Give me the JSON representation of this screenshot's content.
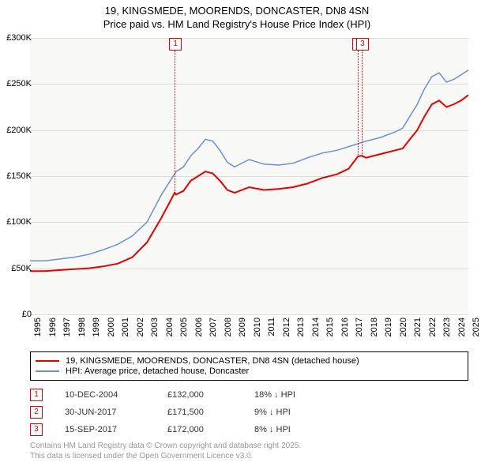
{
  "title_line1": "19, KINGSMEDE, MOORENDS, DONCASTER, DN8 4SN",
  "title_line2": "Price paid vs. HM Land Registry's House Price Index (HPI)",
  "chart": {
    "type": "line",
    "background_color": "#f8f8f6",
    "grid_color": "#dcdcdc",
    "ylim": [
      0,
      300000
    ],
    "ytick_step": 50000,
    "yticks": [
      "£0",
      "£50K",
      "£100K",
      "£150K",
      "£200K",
      "£250K",
      "£300K"
    ],
    "xlim": [
      1995,
      2025
    ],
    "xticks": [
      "1995",
      "1996",
      "1997",
      "1998",
      "1999",
      "2000",
      "2001",
      "2002",
      "2003",
      "2004",
      "2005",
      "2006",
      "2007",
      "2008",
      "2009",
      "2010",
      "2011",
      "2012",
      "2013",
      "2014",
      "2015",
      "2016",
      "2017",
      "2018",
      "2019",
      "2020",
      "2021",
      "2022",
      "2023",
      "2024",
      "2025"
    ],
    "series": [
      {
        "name": "price_paid",
        "label": "19, KINGSMEDE, MOORENDS, DONCASTER, DN8 4SN (detached house)",
        "color": "#e60000",
        "line_width": 2,
        "data": [
          [
            1995,
            47000
          ],
          [
            1996,
            47000
          ],
          [
            1997,
            48000
          ],
          [
            1998,
            49000
          ],
          [
            1999,
            50000
          ],
          [
            2000,
            52000
          ],
          [
            2001,
            55000
          ],
          [
            2002,
            62000
          ],
          [
            2003,
            78000
          ],
          [
            2004,
            105000
          ],
          [
            2004.9,
            132000
          ],
          [
            2005,
            130000
          ],
          [
            2005.5,
            134000
          ],
          [
            2006,
            145000
          ],
          [
            2006.5,
            150000
          ],
          [
            2007,
            155000
          ],
          [
            2007.5,
            153000
          ],
          [
            2008,
            145000
          ],
          [
            2008.5,
            135000
          ],
          [
            2009,
            132000
          ],
          [
            2010,
            138000
          ],
          [
            2011,
            135000
          ],
          [
            2012,
            136000
          ],
          [
            2013,
            138000
          ],
          [
            2014,
            142000
          ],
          [
            2015,
            148000
          ],
          [
            2016,
            152000
          ],
          [
            2016.8,
            158000
          ],
          [
            2017.45,
            171500
          ],
          [
            2017.7,
            172000
          ],
          [
            2018,
            170000
          ],
          [
            2019,
            174000
          ],
          [
            2020,
            178000
          ],
          [
            2020.5,
            180000
          ],
          [
            2021,
            190000
          ],
          [
            2021.5,
            200000
          ],
          [
            2022,
            215000
          ],
          [
            2022.5,
            228000
          ],
          [
            2023,
            232000
          ],
          [
            2023.5,
            225000
          ],
          [
            2024,
            228000
          ],
          [
            2024.5,
            232000
          ],
          [
            2025,
            238000
          ]
        ]
      },
      {
        "name": "hpi",
        "label": "HPI: Average price, detached house, Doncaster",
        "color": "#6a8fd8",
        "line_width": 1.5,
        "data": [
          [
            1995,
            58000
          ],
          [
            1996,
            58000
          ],
          [
            1997,
            60000
          ],
          [
            1998,
            62000
          ],
          [
            1999,
            65000
          ],
          [
            2000,
            70000
          ],
          [
            2001,
            76000
          ],
          [
            2002,
            85000
          ],
          [
            2003,
            100000
          ],
          [
            2004,
            130000
          ],
          [
            2005,
            155000
          ],
          [
            2005.5,
            160000
          ],
          [
            2006,
            172000
          ],
          [
            2006.5,
            180000
          ],
          [
            2007,
            190000
          ],
          [
            2007.5,
            188000
          ],
          [
            2008,
            178000
          ],
          [
            2008.5,
            165000
          ],
          [
            2009,
            160000
          ],
          [
            2010,
            168000
          ],
          [
            2011,
            163000
          ],
          [
            2012,
            162000
          ],
          [
            2013,
            164000
          ],
          [
            2014,
            170000
          ],
          [
            2015,
            175000
          ],
          [
            2016,
            178000
          ],
          [
            2017,
            183000
          ],
          [
            2018,
            188000
          ],
          [
            2019,
            192000
          ],
          [
            2020,
            198000
          ],
          [
            2020.5,
            202000
          ],
          [
            2021,
            215000
          ],
          [
            2021.5,
            228000
          ],
          [
            2022,
            245000
          ],
          [
            2022.5,
            258000
          ],
          [
            2023,
            262000
          ],
          [
            2023.5,
            252000
          ],
          [
            2024,
            255000
          ],
          [
            2024.5,
            260000
          ],
          [
            2025,
            265000
          ]
        ]
      }
    ],
    "markers": [
      {
        "label": "1",
        "x": 2004.9,
        "y": 132000
      },
      {
        "label": "2",
        "x": 2017.45,
        "y": 171500
      },
      {
        "label": "3",
        "x": 2017.7,
        "y": 172000
      }
    ]
  },
  "legend": {
    "items": [
      {
        "color": "#e60000",
        "width": 2,
        "label": "19, KINGSMEDE, MOORENDS, DONCASTER, DN8 4SN (detached house)"
      },
      {
        "color": "#6a8fd8",
        "width": 1.5,
        "label": "HPI: Average price, detached house, Doncaster"
      }
    ]
  },
  "sales": [
    {
      "n": "1",
      "date": "10-DEC-2004",
      "price": "£132,000",
      "delta": "18% ↓ HPI"
    },
    {
      "n": "2",
      "date": "30-JUN-2017",
      "price": "£171,500",
      "delta": "9% ↓ HPI"
    },
    {
      "n": "3",
      "date": "15-SEP-2017",
      "price": "£172,000",
      "delta": "8% ↓ HPI"
    }
  ],
  "footer_line1": "Contains HM Land Registry data © Crown copyright and database right 2025.",
  "footer_line2": "This data is licensed under the Open Government Licence v3.0."
}
